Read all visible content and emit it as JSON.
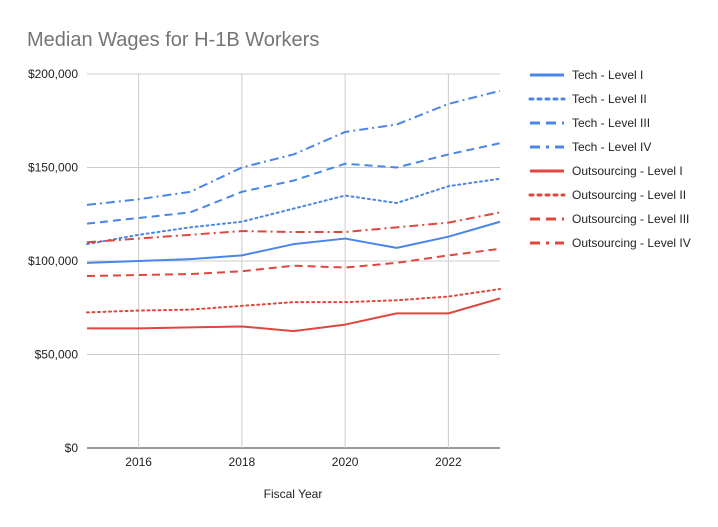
{
  "chart_data": {
    "type": "line",
    "title": "Median Wages for H-1B Workers",
    "xlabel": "Fiscal Year",
    "ylabel": "",
    "x": [
      2015,
      2016,
      2017,
      2018,
      2019,
      2020,
      2021,
      2022,
      2023
    ],
    "xlim": [
      2015,
      2023
    ],
    "xticks": [
      2016,
      2018,
      2020,
      2022
    ],
    "ylim": [
      0,
      200000
    ],
    "yticks": [
      0,
      50000,
      100000,
      150000,
      200000
    ],
    "ytick_labels": [
      "$0",
      "$50,000",
      "$100,000",
      "$150,000",
      "$200,000"
    ],
    "grid": "vertical and horizontal",
    "legend_position": "right",
    "series": [
      {
        "name": "Tech - Level I",
        "color": "#4a86e8",
        "dash": "solid",
        "values": [
          99000,
          100000,
          101000,
          103000,
          109000,
          112000,
          107000,
          113000,
          121000
        ]
      },
      {
        "name": "Tech - Level II",
        "color": "#4a86e8",
        "dash": "dotted",
        "values": [
          109000,
          114000,
          118000,
          121000,
          128000,
          135000,
          131000,
          140000,
          144000
        ]
      },
      {
        "name": "Tech - Level III",
        "color": "#4a86e8",
        "dash": "dashed",
        "values": [
          120000,
          123000,
          126000,
          137000,
          143000,
          152000,
          150000,
          157000,
          163000
        ]
      },
      {
        "name": "Tech - Level IV",
        "color": "#4a86e8",
        "dash": "dashdot",
        "values": [
          130000,
          133000,
          137000,
          150000,
          157000,
          169000,
          173000,
          184000,
          191000
        ]
      },
      {
        "name": "Outsourcing - Level I",
        "color": "#e0463d",
        "dash": "solid",
        "values": [
          64000,
          64000,
          64500,
          65000,
          62500,
          66000,
          72000,
          72000,
          80000
        ]
      },
      {
        "name": "Outsourcing - Level II",
        "color": "#e0463d",
        "dash": "dotted",
        "values": [
          72500,
          73500,
          74000,
          76000,
          78000,
          78000,
          79000,
          81000,
          85000
        ]
      },
      {
        "name": "Outsourcing - Level III",
        "color": "#e0463d",
        "dash": "dashed",
        "values": [
          92000,
          92500,
          93000,
          94500,
          97500,
          96500,
          99000,
          103000,
          106500
        ]
      },
      {
        "name": "Outsourcing - Level IV",
        "color": "#e0463d",
        "dash": "dashdot",
        "values": [
          110000,
          112000,
          114000,
          116000,
          115500,
          115500,
          118000,
          120500,
          126000
        ]
      }
    ]
  }
}
